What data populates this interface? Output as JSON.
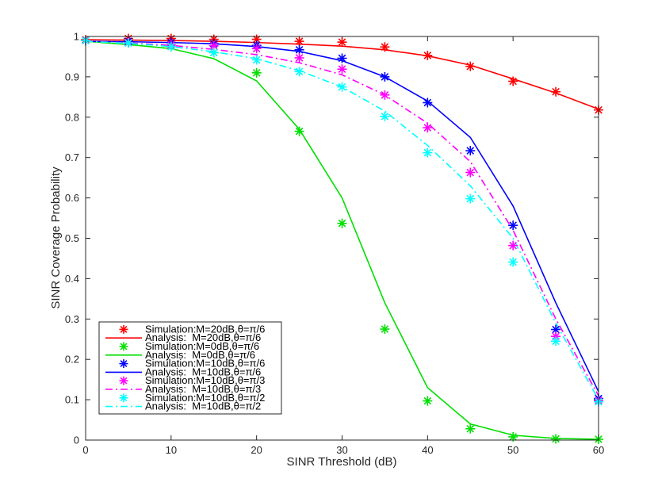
{
  "chart_data": {
    "type": "line",
    "title": "",
    "xlabel": "SINR Threshold (dB)",
    "ylabel": "SINR Coverage Probability",
    "xlim": [
      0,
      60
    ],
    "ylim": [
      0,
      1
    ],
    "xticks": [
      0,
      10,
      20,
      30,
      40,
      50,
      60
    ],
    "yticks": [
      0,
      0.1,
      0.2,
      0.3,
      0.4,
      0.5,
      0.6,
      0.7,
      0.8,
      0.9,
      1
    ],
    "xtick_labels": [
      "0",
      "10",
      "20",
      "30",
      "40",
      "50",
      "60"
    ],
    "ytick_labels": [
      "0",
      "0.1",
      "0.2",
      "0.3",
      "0.4",
      "0.5",
      "0.6",
      "0.7",
      "0.8",
      "0.9",
      "1"
    ],
    "legend_location": "bottom-left",
    "x": [
      0,
      5,
      10,
      15,
      20,
      25,
      30,
      35,
      40,
      45,
      50,
      55,
      60
    ],
    "series": [
      {
        "name": "Simulation:M=20dB,θ=π/6",
        "kind": "markers",
        "color": "#ff0000",
        "values": [
          0.992,
          0.995,
          0.995,
          0.993,
          0.993,
          0.988,
          0.986,
          0.974,
          0.953,
          0.926,
          0.889,
          0.863,
          0.818
        ]
      },
      {
        "name": "Analysis:  M=20dB,θ=π/6",
        "kind": "line",
        "dash": "solid",
        "color": "#ff0000",
        "values": [
          0.992,
          0.991,
          0.99,
          0.988,
          0.985,
          0.981,
          0.976,
          0.967,
          0.952,
          0.929,
          0.895,
          0.86,
          0.82
        ]
      },
      {
        "name": "Simulation:M=0dB,θ=π/6",
        "kind": "markers",
        "color": "#00e000",
        "values": [
          0.99,
          0.985,
          0.975,
          0.96,
          0.91,
          0.765,
          0.537,
          0.275,
          0.097,
          0.028,
          0.008,
          0.003,
          0.002
        ]
      },
      {
        "name": "Analysis:  M=0dB,θ=π/6",
        "kind": "line",
        "dash": "solid",
        "color": "#00e000",
        "values": [
          0.988,
          0.98,
          0.97,
          0.945,
          0.89,
          0.77,
          0.6,
          0.34,
          0.13,
          0.04,
          0.012,
          0.004,
          0.002
        ]
      },
      {
        "name": "Simulation:M=10dB,θ=π/6",
        "kind": "markers",
        "color": "#0000ff",
        "values": [
          0.99,
          0.988,
          0.985,
          0.982,
          0.978,
          0.967,
          0.946,
          0.9,
          0.836,
          0.717,
          0.532,
          0.274,
          0.103
        ]
      },
      {
        "name": "Analysis:  M=10dB,θ=π/6",
        "kind": "line",
        "dash": "solid",
        "color": "#0000ff",
        "values": [
          0.988,
          0.987,
          0.985,
          0.982,
          0.975,
          0.963,
          0.94,
          0.9,
          0.84,
          0.75,
          0.58,
          0.34,
          0.12
        ]
      },
      {
        "name": "Simulation:M=10dB,θ=π/3",
        "kind": "markers",
        "color": "#ff00ff",
        "values": [
          0.99,
          0.985,
          0.979,
          0.977,
          0.97,
          0.947,
          0.919,
          0.855,
          0.774,
          0.663,
          0.482,
          0.257,
          0.098
        ]
      },
      {
        "name": "Analysis:  M=10dB,θ=π/3",
        "kind": "line",
        "dash": "dashdot",
        "color": "#ff00ff",
        "values": [
          0.988,
          0.984,
          0.978,
          0.968,
          0.955,
          0.935,
          0.905,
          0.855,
          0.785,
          0.69,
          0.52,
          0.3,
          0.11
        ]
      },
      {
        "name": "Simulation:M=10dB,θ=π/2",
        "kind": "markers",
        "color": "#00ffff",
        "values": [
          0.99,
          0.984,
          0.975,
          0.96,
          0.942,
          0.913,
          0.875,
          0.802,
          0.712,
          0.598,
          0.441,
          0.245,
          0.095
        ]
      },
      {
        "name": "Analysis:  M=10dB,θ=π/2",
        "kind": "line",
        "dash": "dashdot",
        "color": "#00ffff",
        "values": [
          0.988,
          0.983,
          0.975,
          0.962,
          0.945,
          0.915,
          0.875,
          0.815,
          0.73,
          0.63,
          0.5,
          0.29,
          0.1
        ]
      }
    ]
  }
}
